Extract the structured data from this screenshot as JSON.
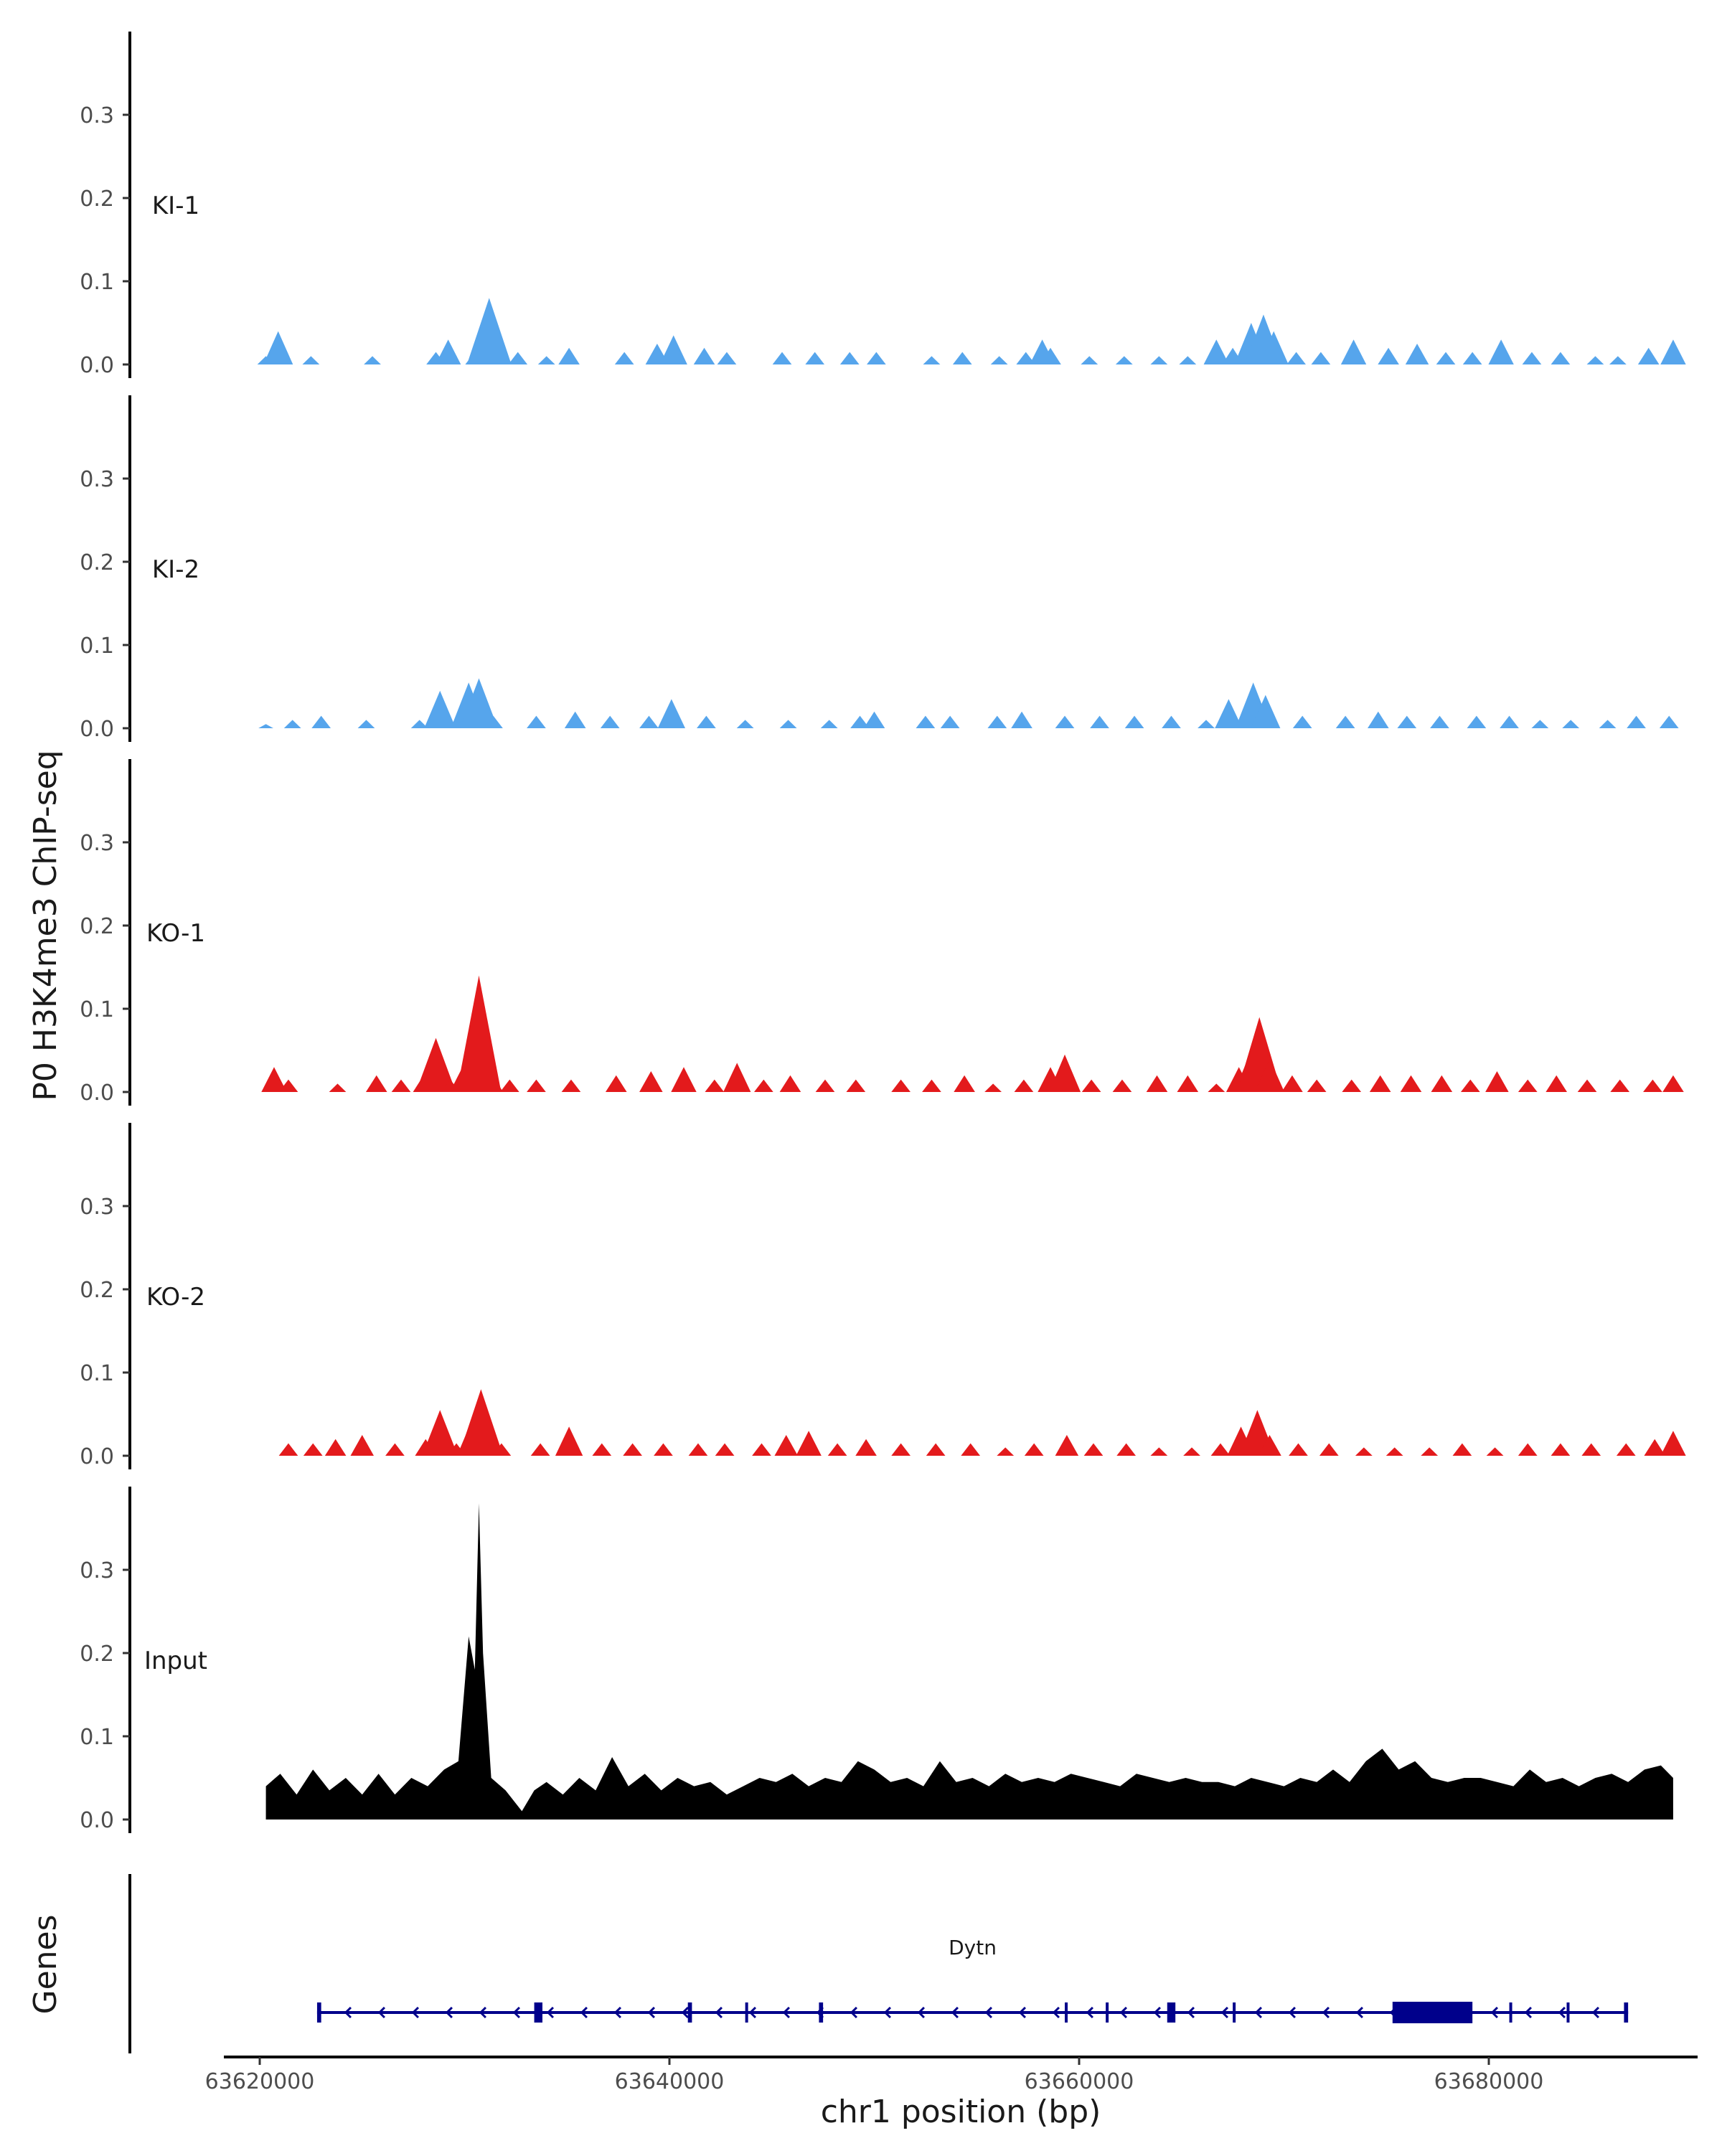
{
  "chart_data": {
    "type": "area",
    "ylabel": "P0 H3K4me3 ChIP-seq",
    "xlabel": "chr1 position (bp)",
    "x_ticks": [
      "63620000",
      "63640000",
      "63660000",
      "63680000"
    ],
    "x_tick_values": [
      63620000,
      63640000,
      63660000,
      63680000
    ],
    "xlim": [
      63616000,
      63692000
    ],
    "ylim": [
      0,
      0.4
    ],
    "y_ticks": [
      "0.0",
      "0.1",
      "0.2",
      "0.3"
    ],
    "y_tick_values": [
      0,
      0.1,
      0.2,
      0.3
    ],
    "tracks": [
      {
        "name": "KI-1",
        "color": "#56A5EC",
        "x": [
          63620300,
          63620900,
          63622500,
          63625500,
          63628600,
          63629200,
          63630500,
          63631200,
          63632600,
          63634000,
          63635100,
          63637800,
          63639400,
          63640200,
          63641700,
          63642800,
          63645500,
          63647100,
          63648800,
          63650100,
          63652800,
          63654300,
          63656100,
          63657400,
          63658200,
          63658600,
          63660500,
          63662200,
          63663900,
          63665300,
          63666700,
          63667500,
          63668400,
          63669000,
          63669500,
          63670600,
          63671800,
          63673400,
          63675100,
          63676500,
          63677900,
          63679200,
          63680600,
          63682100,
          63683500,
          63685200,
          63686300,
          63687800,
          63689000
        ],
        "values": [
          0.01,
          0.04,
          0.01,
          0.01,
          0.015,
          0.03,
          0.015,
          0.08,
          0.015,
          0.01,
          0.02,
          0.015,
          0.025,
          0.035,
          0.02,
          0.015,
          0.015,
          0.015,
          0.015,
          0.015,
          0.01,
          0.015,
          0.01,
          0.015,
          0.03,
          0.02,
          0.01,
          0.01,
          0.01,
          0.01,
          0.03,
          0.02,
          0.05,
          0.06,
          0.04,
          0.015,
          0.015,
          0.03,
          0.02,
          0.025,
          0.015,
          0.015,
          0.03,
          0.015,
          0.015,
          0.01,
          0.01,
          0.02,
          0.03
        ]
      },
      {
        "name": "KI-2",
        "color": "#56A5EC",
        "x": [
          63620300,
          63621600,
          63623000,
          63625200,
          63627800,
          63628800,
          63630200,
          63630700,
          63631400,
          63633500,
          63635400,
          63637100,
          63639000,
          63640100,
          63641800,
          63643700,
          63645800,
          63647800,
          63649300,
          63650000,
          63652500,
          63653700,
          63656000,
          63657200,
          63659300,
          63661000,
          63662700,
          63664500,
          63666200,
          63667300,
          63668500,
          63669100,
          63670900,
          63673000,
          63674600,
          63676000,
          63677600,
          63679400,
          63681000,
          63682500,
          63684000,
          63685800,
          63687200,
          63688800
        ],
        "values": [
          0.005,
          0.01,
          0.015,
          0.01,
          0.01,
          0.045,
          0.055,
          0.06,
          0.015,
          0.015,
          0.02,
          0.015,
          0.015,
          0.035,
          0.015,
          0.01,
          0.01,
          0.01,
          0.015,
          0.02,
          0.015,
          0.015,
          0.015,
          0.02,
          0.015,
          0.015,
          0.015,
          0.015,
          0.01,
          0.035,
          0.055,
          0.04,
          0.015,
          0.015,
          0.02,
          0.015,
          0.015,
          0.015,
          0.015,
          0.01,
          0.01,
          0.01,
          0.015,
          0.015
        ]
      },
      {
        "name": "KO-1",
        "color": "#E31A1C",
        "x": [
          63620700,
          63621400,
          63623800,
          63625700,
          63626900,
          63628000,
          63628600,
          63629300,
          63629900,
          63630400,
          63630700,
          63631300,
          63632200,
          63633500,
          63635200,
          63637400,
          63639100,
          63640700,
          63642200,
          63643300,
          63644600,
          63645900,
          63647600,
          63649100,
          63651300,
          63652800,
          63654400,
          63655800,
          63657300,
          63658600,
          63659300,
          63660600,
          63662100,
          63663800,
          63665300,
          63666700,
          63667800,
          63668400,
          63668800,
          63669300,
          63670400,
          63671600,
          63673300,
          63674700,
          63676200,
          63677700,
          63679100,
          63680400,
          63681900,
          63683300,
          63684800,
          63686400,
          63688000,
          63689000
        ],
        "values": [
          0.03,
          0.015,
          0.01,
          0.02,
          0.015,
          0.02,
          0.065,
          0.015,
          0.03,
          0.05,
          0.14,
          0.025,
          0.015,
          0.015,
          0.015,
          0.02,
          0.025,
          0.03,
          0.015,
          0.035,
          0.015,
          0.02,
          0.015,
          0.015,
          0.015,
          0.015,
          0.02,
          0.01,
          0.015,
          0.03,
          0.045,
          0.015,
          0.015,
          0.02,
          0.02,
          0.01,
          0.03,
          0.05,
          0.09,
          0.04,
          0.02,
          0.015,
          0.015,
          0.02,
          0.02,
          0.02,
          0.015,
          0.025,
          0.015,
          0.02,
          0.015,
          0.015,
          0.015,
          0.02
        ]
      },
      {
        "name": "KO-2",
        "color": "#E31A1C",
        "x": [
          63621400,
          63622600,
          63623700,
          63625000,
          63626600,
          63628100,
          63628800,
          63629600,
          63630400,
          63630800,
          63631800,
          63633700,
          63635100,
          63636700,
          63638200,
          63639700,
          63641400,
          63642700,
          63644500,
          63645700,
          63646800,
          63648200,
          63649600,
          63651300,
          63653000,
          63654700,
          63656400,
          63657800,
          63659400,
          63660700,
          63662300,
          63663900,
          63665500,
          63666900,
          63667900,
          63668700,
          63669300,
          63670700,
          63672200,
          63673900,
          63675400,
          63677100,
          63678700,
          63680300,
          63681900,
          63683500,
          63685000,
          63686700,
          63688100,
          63689000
        ],
        "values": [
          0.015,
          0.015,
          0.02,
          0.025,
          0.015,
          0.02,
          0.055,
          0.015,
          0.045,
          0.08,
          0.015,
          0.015,
          0.035,
          0.015,
          0.015,
          0.015,
          0.015,
          0.015,
          0.015,
          0.025,
          0.03,
          0.015,
          0.02,
          0.015,
          0.015,
          0.015,
          0.01,
          0.015,
          0.025,
          0.015,
          0.015,
          0.01,
          0.01,
          0.015,
          0.035,
          0.055,
          0.025,
          0.015,
          0.015,
          0.01,
          0.01,
          0.01,
          0.015,
          0.01,
          0.015,
          0.015,
          0.015,
          0.015,
          0.02,
          0.03
        ]
      },
      {
        "name": "Input",
        "color": "#000000",
        "x": [
          63620300,
          63621000,
          63621800,
          63622600,
          63623400,
          63624200,
          63625000,
          63625800,
          63626600,
          63627400,
          63628200,
          63629000,
          63629700,
          63630200,
          63630500,
          63630700,
          63630900,
          63631300,
          63632000,
          63632800,
          63633400,
          63634000,
          63634800,
          63635600,
          63636400,
          63637200,
          63638000,
          63638800,
          63639600,
          63640400,
          63641200,
          63642000,
          63642800,
          63643600,
          63644400,
          63645200,
          63646000,
          63646800,
          63647600,
          63648400,
          63649200,
          63650000,
          63650800,
          63651600,
          63652400,
          63653200,
          63654000,
          63654800,
          63655600,
          63656400,
          63657200,
          63658000,
          63658800,
          63659600,
          63660400,
          63661200,
          63662000,
          63662800,
          63663600,
          63664400,
          63665200,
          63666000,
          63666800,
          63667600,
          63668400,
          63669200,
          63670000,
          63670800,
          63671600,
          63672400,
          63673200,
          63674000,
          63674800,
          63675600,
          63676400,
          63677200,
          63678000,
          63678800,
          63679600,
          63680400,
          63681200,
          63682000,
          63682800,
          63683600,
          63684400,
          63685200,
          63686000,
          63686800,
          63687600,
          63688400,
          63689000
        ],
        "values": [
          0.04,
          0.055,
          0.03,
          0.06,
          0.035,
          0.05,
          0.03,
          0.055,
          0.03,
          0.05,
          0.04,
          0.06,
          0.07,
          0.22,
          0.18,
          0.38,
          0.2,
          0.05,
          0.035,
          0.01,
          0.035,
          0.045,
          0.03,
          0.05,
          0.035,
          0.075,
          0.04,
          0.055,
          0.035,
          0.05,
          0.04,
          0.045,
          0.03,
          0.04,
          0.05,
          0.045,
          0.055,
          0.04,
          0.05,
          0.045,
          0.07,
          0.06,
          0.045,
          0.05,
          0.04,
          0.07,
          0.045,
          0.05,
          0.04,
          0.055,
          0.045,
          0.05,
          0.045,
          0.055,
          0.05,
          0.045,
          0.04,
          0.055,
          0.05,
          0.045,
          0.05,
          0.045,
          0.045,
          0.04,
          0.05,
          0.045,
          0.04,
          0.05,
          0.045,
          0.06,
          0.045,
          0.07,
          0.085,
          0.06,
          0.07,
          0.05,
          0.045,
          0.05,
          0.05,
          0.045,
          0.04,
          0.06,
          0.045,
          0.05,
          0.04,
          0.05,
          0.055,
          0.045,
          0.06,
          0.065,
          0.05
        ]
      }
    ],
    "genes": {
      "track_label": "Genes",
      "color": "#00008B",
      "items": [
        {
          "name": "Dytn",
          "strand": "-",
          "start": 63622800,
          "end": 63686800,
          "exons": [
            [
              63622800,
              63623000
            ],
            [
              63633400,
              63633800
            ],
            [
              63640900,
              63641100
            ],
            [
              63643700,
              63643800
            ],
            [
              63647300,
              63647500
            ],
            [
              63659300,
              63659400
            ],
            [
              63661300,
              63661400
            ],
            [
              63664300,
              63664700
            ],
            [
              63667500,
              63667600
            ],
            [
              63675300,
              63679200
            ],
            [
              63681000,
              63681100
            ],
            [
              63683800,
              63683900
            ],
            [
              63686600,
              63686800
            ]
          ]
        }
      ]
    }
  }
}
